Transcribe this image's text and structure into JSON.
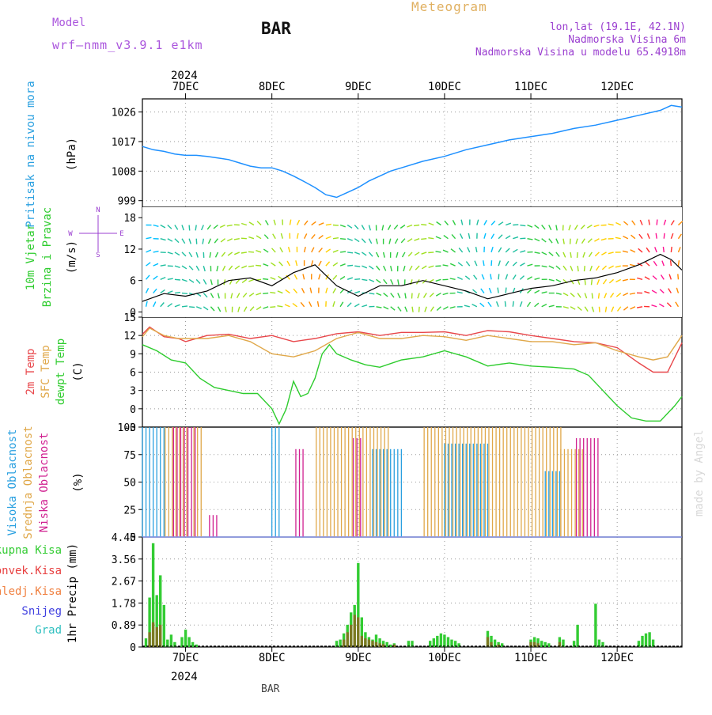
{
  "header": {
    "model_label": "Model",
    "model_name": "wrf—nmm_v3.9.1 e1km",
    "station": "BAR",
    "chart_title": "Meteogram",
    "location": "lon,lat (19.1E, 42.1N)",
    "elevation": "Nadmorska Visina 6m",
    "model_elevation": "Nadmorska Visina u modelu 65.4918m",
    "footer_station": "BAR",
    "credit": "made by Angel"
  },
  "colors": {
    "pressure": "#1e90ff",
    "temp2m": "#e8474b",
    "sfc_temp": "#e0a84a",
    "dewpoint": "#2ecc2e",
    "high_cloud": "#2aa0e0",
    "mid_cloud": "#e0a84a",
    "low_cloud": "#d02090",
    "precip_total": "#33cc33",
    "precip_conv": "#e84040",
    "precip_frozen": "#f08040",
    "snow": "#4040e0",
    "hail": "#30c0c0",
    "purple_label": "#9b40d0",
    "model_label": "#aa55dd"
  },
  "chart_data": {
    "type": "line",
    "time_axis": {
      "year": "2024",
      "days": [
        "7DEC",
        "8DEC",
        "9DEC",
        "10DEC",
        "11DEC",
        "12DEC"
      ],
      "range_hours_from_7DEC_00": [
        -12,
        138
      ]
    },
    "panels": [
      {
        "id": "pressure",
        "ylabel": [
          "Pritisak na nivou mora",
          "(hPa)"
        ],
        "ylim": [
          997,
          1030
        ],
        "ticks": [
          999,
          1008,
          1017,
          1026
        ],
        "series": [
          {
            "name": "Pritisak na nivou mora",
            "x": [
              -12,
              -9,
              -6,
              -3,
              0,
              3,
              6,
              9,
              12,
              15,
              18,
              21,
              24,
              27,
              30,
              33,
              36,
              39,
              42,
              45,
              48,
              51,
              54,
              57,
              60,
              66,
              72,
              78,
              84,
              90,
              96,
              102,
              108,
              114,
              120,
              126,
              132,
              135,
              138
            ],
            "y": [
              1015.5,
              1014.5,
              1014,
              1013.2,
              1012.8,
              1012.8,
              1012.5,
              1012,
              1011.5,
              1010.5,
              1009.5,
              1009,
              1009,
              1008,
              1006.5,
              1004.8,
              1003,
              1000.8,
              1000,
              1001.5,
              1003,
              1005,
              1006.5,
              1008,
              1009,
              1011,
              1012.5,
              1014.5,
              1016,
              1017.5,
              1018.5,
              1019.5,
              1021,
              1022,
              1023.5,
              1025,
              1026.5,
              1028,
              1027.5
            ]
          }
        ]
      },
      {
        "id": "wind",
        "ylabel": [
          "10m Vjetar",
          "Brzina i Pravac",
          "(m/s)"
        ],
        "compass": {
          "n": "N",
          "s": "S",
          "w": "W",
          "e": "E"
        },
        "ylim": [
          -1,
          20
        ],
        "ticks": [
          0,
          6,
          12,
          18
        ],
        "series": [
          {
            "name": "10m Vjetar brzina",
            "x": [
              -12,
              -6,
              0,
              6,
              12,
              18,
              24,
              30,
              36,
              42,
              48,
              54,
              60,
              66,
              72,
              78,
              84,
              90,
              96,
              102,
              108,
              114,
              120,
              126,
              132,
              135,
              138
            ],
            "y": [
              2,
              3.5,
              3,
              4,
              6,
              6.5,
              5,
              7.5,
              9,
              5,
              3,
              5,
              5,
              6,
              5,
              4,
              2.5,
              3.5,
              4.5,
              5,
              6,
              6.5,
              7.5,
              9,
              11,
              10,
              8
            ]
          }
        ]
      },
      {
        "id": "temperature",
        "ylabel": [
          "2m Temp",
          "SFC Temp",
          "dewpt Temp",
          "(C)"
        ],
        "ylim": [
          -3,
          15
        ],
        "ticks": [
          -3,
          0,
          3,
          6,
          9,
          12,
          15
        ],
        "series": [
          {
            "name": "2m Temp",
            "x": [
              -12,
              -10,
              -6,
              -2,
              0,
              6,
              12,
              18,
              24,
              30,
              36,
              42,
              48,
              54,
              60,
              66,
              72,
              78,
              84,
              90,
              96,
              102,
              108,
              114,
              120,
              126,
              130,
              134,
              138
            ],
            "y": [
              12.2,
              13.4,
              11.8,
              11.5,
              11,
              12,
              12.2,
              11.5,
              12,
              11,
              11.5,
              12.3,
              12.6,
              12,
              12.5,
              12.5,
              12.6,
              12,
              12.8,
              12.6,
              12,
              11.5,
              11,
              10.8,
              10,
              7.5,
              6,
              6,
              10.8
            ]
          },
          {
            "name": "SFC Temp",
            "x": [
              -12,
              -10,
              -6,
              -2,
              0,
              6,
              12,
              18,
              24,
              30,
              36,
              42,
              48,
              54,
              60,
              66,
              72,
              78,
              84,
              90,
              96,
              102,
              108,
              114,
              120,
              126,
              130,
              134,
              138
            ],
            "y": [
              11.8,
              13.2,
              12,
              11.5,
              11.5,
              11.5,
              12,
              11,
              9,
              8.5,
              9.5,
              11.5,
              12.5,
              11.5,
              11.5,
              12,
              11.8,
              11.2,
              12,
              11.5,
              11,
              11,
              10.5,
              10.8,
              9.5,
              8.5,
              8,
              8.5,
              12
            ]
          },
          {
            "name": "dewpt Temp",
            "x": [
              -12,
              -8,
              -4,
              0,
              4,
              8,
              12,
              16,
              20,
              24,
              26,
              28,
              30,
              32,
              34,
              36,
              38,
              40,
              42,
              46,
              50,
              54,
              60,
              66,
              72,
              78,
              84,
              90,
              96,
              102,
              108,
              112,
              116,
              120,
              124,
              128,
              132,
              136,
              138
            ],
            "y": [
              10.5,
              9.5,
              8,
              7.5,
              5,
              3.5,
              3,
              2.5,
              2.5,
              0,
              -2.5,
              0,
              4.5,
              2,
              2.5,
              5,
              9,
              10.5,
              9,
              8,
              7.2,
              6.8,
              8,
              8.5,
              9.5,
              8.5,
              7,
              7.5,
              7,
              6.8,
              6.5,
              5.5,
              3,
              0.5,
              -1.5,
              -2,
              -2,
              0.5,
              2
            ]
          }
        ]
      },
      {
        "id": "cloud",
        "ylabel": [
          "Visoka Oblacnost",
          "Srednja Oblacnost",
          "Niska Oblacnost",
          "(%)"
        ],
        "ylim": [
          0,
          100
        ],
        "ticks": [
          0,
          25,
          50,
          75,
          100
        ],
        "series": [
          {
            "name": "Visoka Oblacnost",
            "segments": [
              [
                -12,
                -6,
                100
              ],
              [
                24,
                26,
                100
              ],
              [
                52,
                60,
                80
              ],
              [
                72,
                84,
                85
              ],
              [
                100,
                104,
                60
              ]
            ]
          },
          {
            "name": "Srednja Oblacnost",
            "segments": [
              [
                -6,
                0,
                100
              ],
              [
                2,
                4,
                100
              ],
              [
                36,
                56,
                100
              ],
              [
                66,
                104,
                100
              ],
              [
                104,
                110,
                80
              ]
            ]
          },
          {
            "name": "Niska Oblacnost",
            "segments": [
              [
                -4,
                2,
                100
              ],
              [
                6,
                8,
                20
              ],
              [
                30,
                32,
                80
              ],
              [
                46,
                48,
                90
              ],
              [
                108,
                114,
                90
              ]
            ]
          }
        ]
      },
      {
        "id": "precip",
        "ylabel": [
          "1hr Precip (mm)"
        ],
        "legend": [
          "Ukupna Kisa",
          "Konvek.Kisa",
          "Zaledj.Kisa",
          "Snijeg",
          "Grad"
        ],
        "ylim": [
          0,
          4.45
        ],
        "ticks": [
          0,
          0.89,
          1.78,
          2.67,
          3.56,
          4.45
        ],
        "series": [
          {
            "name": "Ukupna Kisa",
            "x": [
              -11,
              -10,
              -9,
              -8,
              -7,
              -6,
              -5,
              -4,
              -3,
              -1,
              0,
              1,
              2,
              3,
              42,
              43,
              44,
              45,
              46,
              47,
              48,
              49,
              50,
              51,
              52,
              53,
              54,
              55,
              56,
              57,
              58,
              62,
              63,
              68,
              69,
              70,
              71,
              72,
              73,
              74,
              75,
              76,
              84,
              85,
              86,
              87,
              88,
              96,
              97,
              98,
              99,
              100,
              101,
              104,
              105,
              108,
              109,
              114,
              115,
              116,
              126,
              127,
              128,
              129,
              130
            ],
            "y": [
              0.35,
              2.0,
              4.2,
              2.1,
              2.9,
              1.7,
              0.3,
              0.5,
              0.2,
              0.4,
              0.7,
              0.4,
              0.2,
              0.1,
              0.25,
              0.3,
              0.55,
              0.9,
              1.4,
              1.7,
              3.4,
              1.2,
              0.6,
              0.4,
              0.3,
              0.5,
              0.35,
              0.25,
              0.2,
              0.1,
              0.15,
              0.25,
              0.25,
              0.25,
              0.35,
              0.45,
              0.55,
              0.5,
              0.4,
              0.3,
              0.25,
              0.15,
              0.65,
              0.45,
              0.3,
              0.2,
              0.15,
              0.3,
              0.4,
              0.35,
              0.25,
              0.2,
              0.15,
              0.4,
              0.3,
              0.25,
              0.9,
              1.75,
              0.3,
              0.2,
              0.25,
              0.45,
              0.55,
              0.6,
              0.3
            ]
          },
          {
            "name": "Konvek.Kisa",
            "x": [
              -10,
              -9,
              -8,
              -7,
              44,
              45,
              46,
              47,
              48,
              49,
              50,
              51,
              52,
              53,
              54,
              55,
              58,
              84,
              85,
              87,
              96,
              97,
              98,
              104
            ],
            "y": [
              0.6,
              1.0,
              0.8,
              0.9,
              0.3,
              0.6,
              0.9,
              1.3,
              1.2,
              0.45,
              0.35,
              0.3,
              0.25,
              0.2,
              0.15,
              0.12,
              0.1,
              0.4,
              0.2,
              0.1,
              0.2,
              0.2,
              0.15,
              0.2
            ]
          }
        ]
      }
    ]
  }
}
